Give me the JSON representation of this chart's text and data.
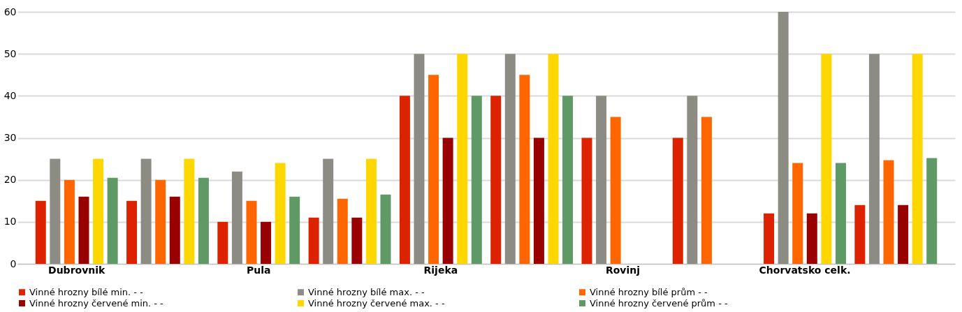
{
  "chart_data": {
    "type": "bar",
    "categories": [
      "Dubrovnik",
      null,
      "Pula",
      null,
      "Rijeka",
      null,
      "Rovinj",
      null,
      "Chorvatsko celk.",
      null
    ],
    "series": [
      {
        "name": "Vinné hrozny bílé min. - -",
        "color": "#dd2200",
        "values": [
          15,
          15,
          10,
          11,
          40,
          40,
          30,
          30,
          12,
          14
        ]
      },
      {
        "name": "Vinné hrozny bílé max. - -",
        "color": "#8c8c84",
        "values": [
          25,
          25,
          22,
          25,
          50,
          50,
          40,
          40,
          60,
          50
        ]
      },
      {
        "name": "Vinné hrozny bílé prům - -",
        "color": "#ff6600",
        "values": [
          20,
          20,
          15,
          15.5,
          45,
          45,
          35,
          35,
          24,
          24.7
        ]
      },
      {
        "name": "Vinné hrozny červené min. - -",
        "color": "#990000",
        "values": [
          16,
          16,
          10,
          11,
          30,
          30,
          null,
          null,
          12,
          14
        ]
      },
      {
        "name": "Vinné hrozny červené max. - -",
        "color": "#ffd700",
        "values": [
          25,
          25,
          24,
          25,
          50,
          50,
          null,
          null,
          50,
          50
        ]
      },
      {
        "name": "Vinné hrozny červené prům - -",
        "color": "#5f9966",
        "values": [
          20.5,
          20.5,
          16,
          16.5,
          40,
          40,
          null,
          null,
          24,
          25.2
        ]
      }
    ],
    "ylim": [
      0,
      60
    ],
    "yticks": [
      0,
      10,
      20,
      30,
      40,
      50,
      60
    ],
    "grid": "y",
    "legend": "bottom"
  }
}
